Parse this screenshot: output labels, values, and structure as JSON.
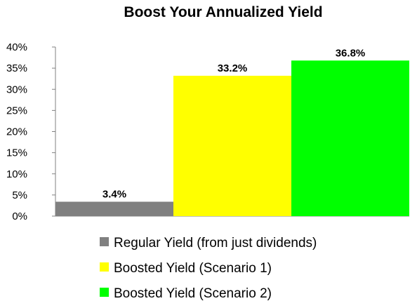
{
  "chart_data": {
    "type": "bar",
    "title": "Boost Your Annualized Yield",
    "xlabel": "",
    "ylabel": "",
    "ylim": [
      0,
      40
    ],
    "ytick_values": [
      0,
      5,
      10,
      15,
      20,
      25,
      30,
      35,
      40
    ],
    "ytick_labels": [
      "0%",
      "5%",
      "10%",
      "15%",
      "20%",
      "25%",
      "30%",
      "35%",
      "40%"
    ],
    "grid": false,
    "legend_position": "bottom",
    "series": [
      {
        "name": "Regular Yield (from just dividends)",
        "value": 3.4,
        "label": "3.4%",
        "color": "#808080"
      },
      {
        "name": "Boosted Yield (Scenario 1)",
        "value": 33.2,
        "label": "33.2%",
        "color": "#ffff00"
      },
      {
        "name": "Boosted Yield (Scenario 2)",
        "value": 36.8,
        "label": "36.8%",
        "color": "#00ff00"
      }
    ]
  }
}
